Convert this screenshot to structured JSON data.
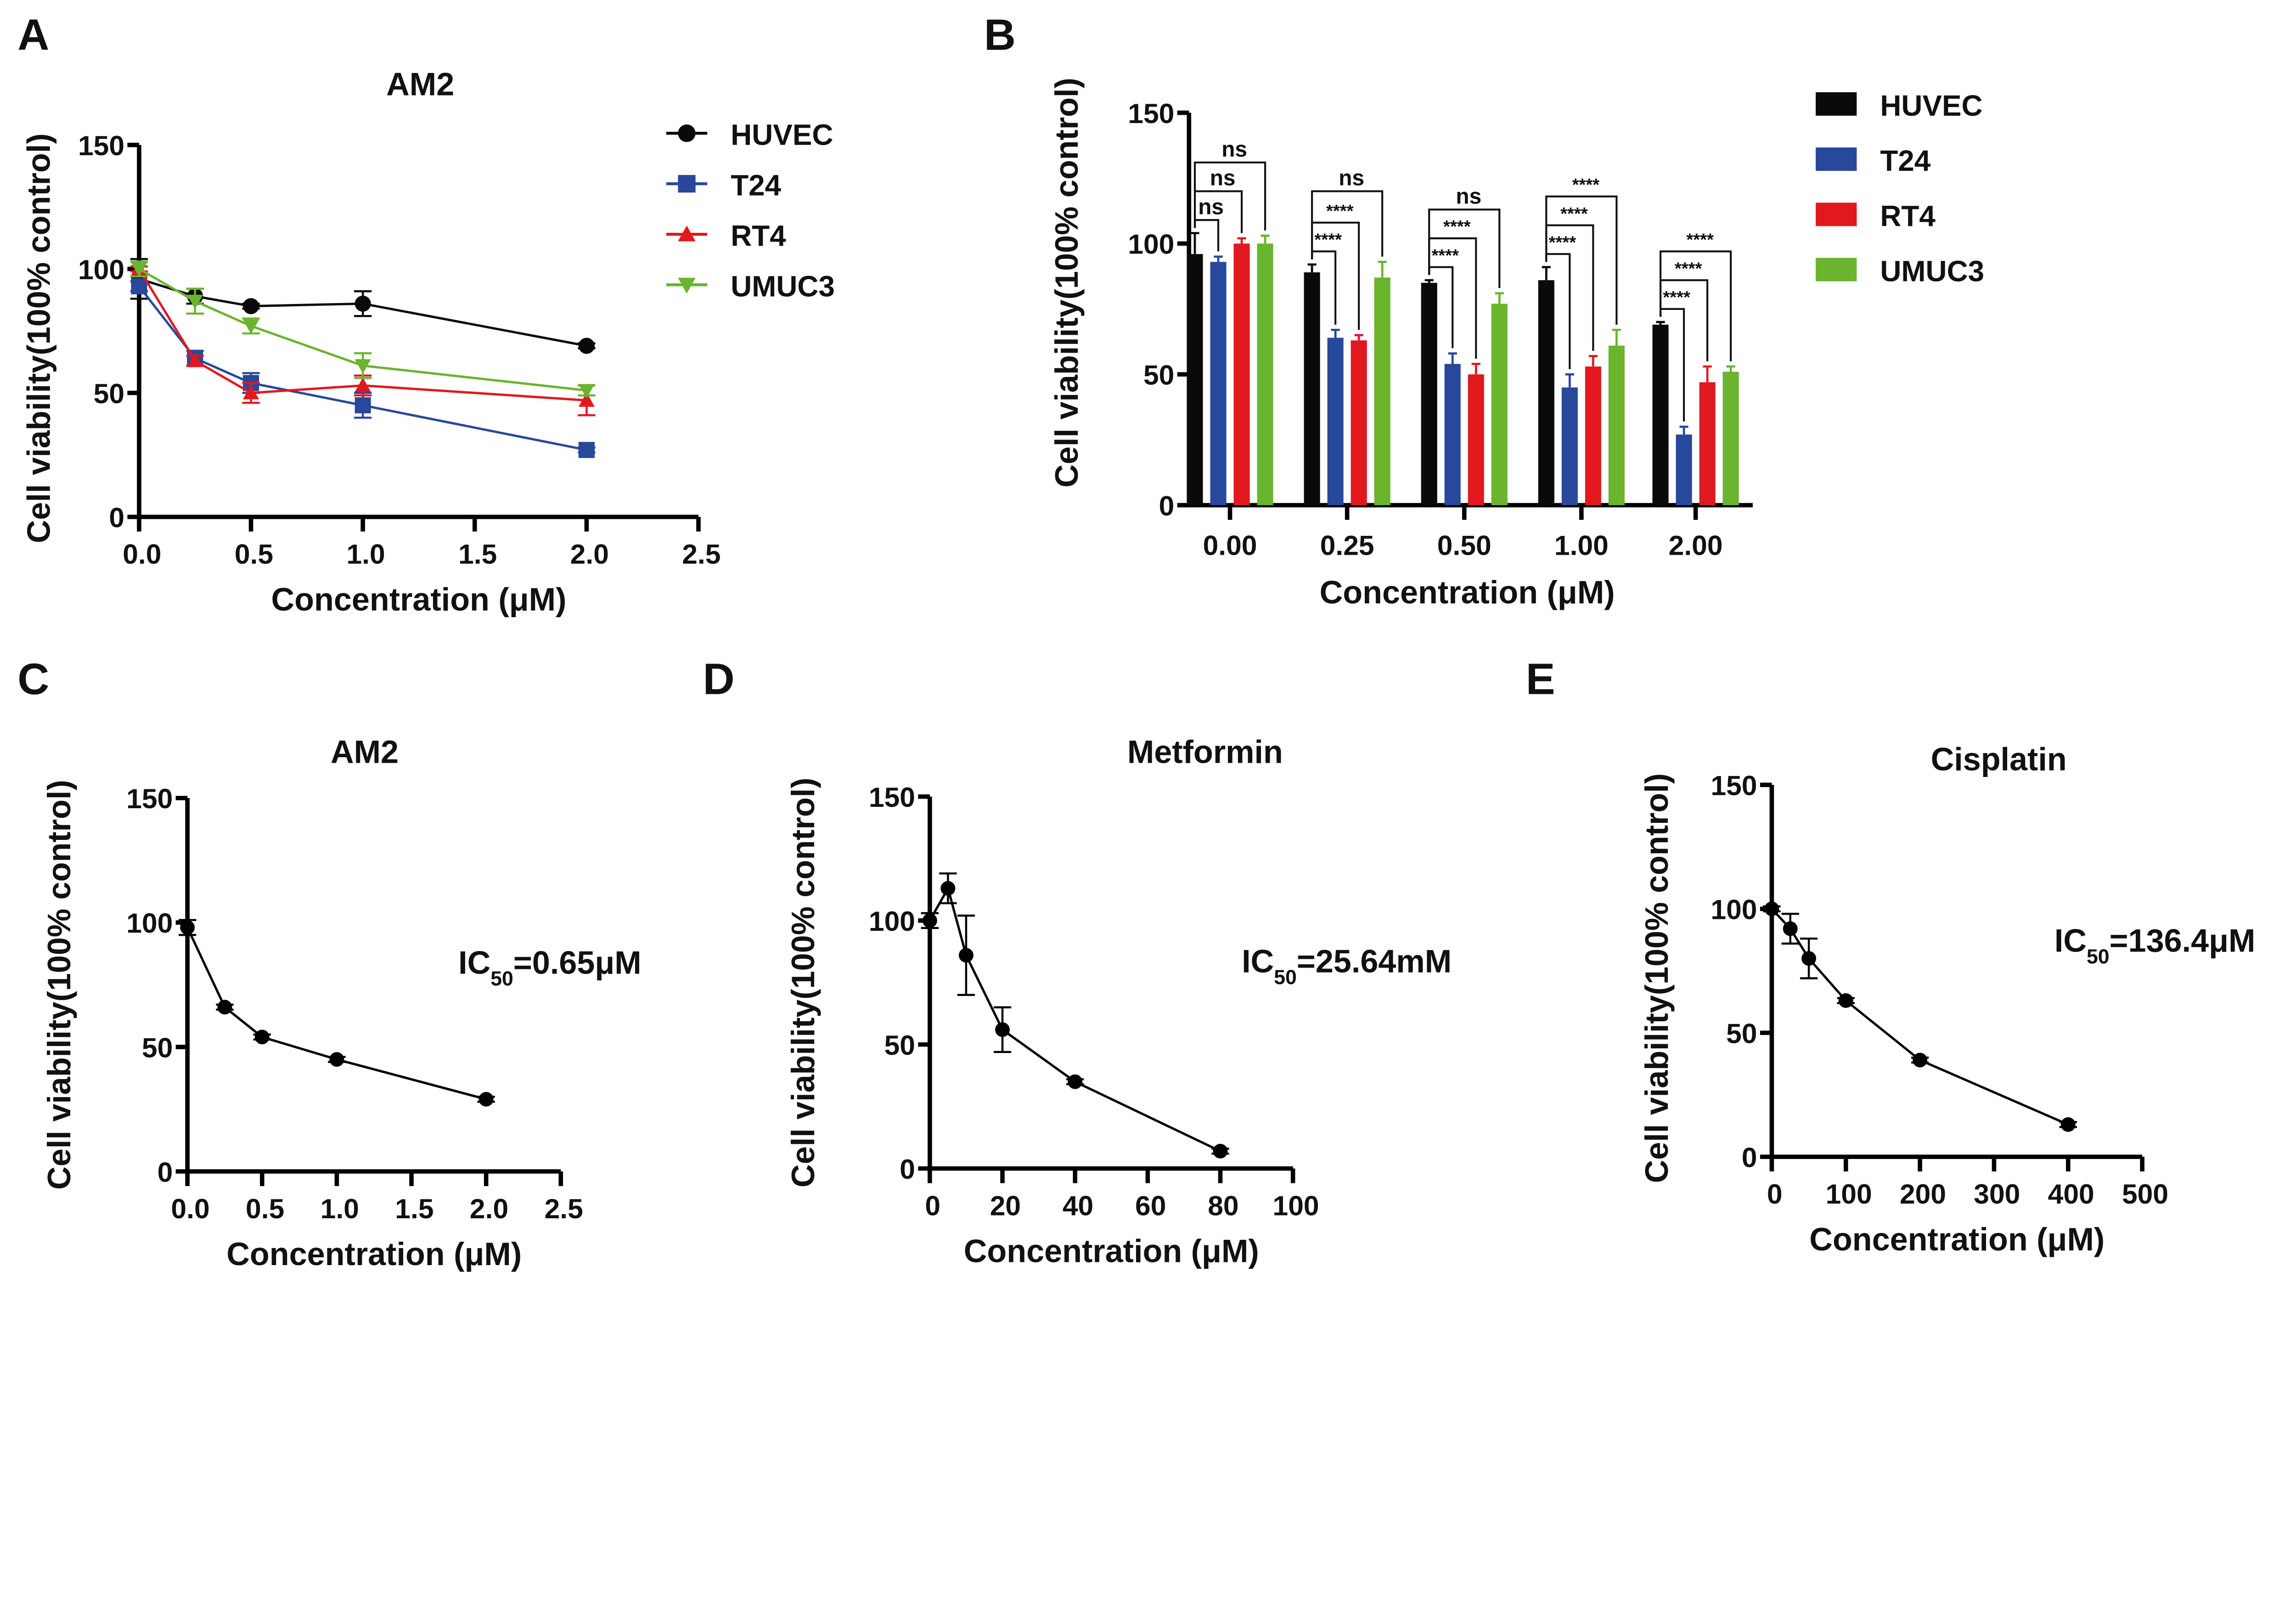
{
  "colors": {
    "HUVEC": "#0a0a0a",
    "T24": "#28489c",
    "RT4": "#e2181f",
    "UMUC3": "#6ab42e"
  },
  "chart_data": [
    {
      "panel": "A",
      "type": "line",
      "title": "AM2",
      "xlabel": "Concentration (μM)",
      "ylabel": "Cell viability(100% control)",
      "xlim": [
        0,
        2.5
      ],
      "ylim": [
        0,
        150
      ],
      "xticks": [
        "0.0",
        "0.5",
        "1.0",
        "1.5",
        "2.0",
        "2.5"
      ],
      "yticks": [
        "0",
        "50",
        "100",
        "150"
      ],
      "legend": "right",
      "x": [
        0,
        0.25,
        0.5,
        1,
        2
      ],
      "series": [
        {
          "name": "HUVEC",
          "marker": "circle",
          "values": [
            96,
            89,
            85,
            86,
            69
          ],
          "errors": [
            8,
            3,
            1,
            5,
            1
          ]
        },
        {
          "name": "T24",
          "marker": "square",
          "values": [
            93,
            64,
            54,
            45,
            27
          ],
          "errors": [
            2,
            3,
            4,
            5,
            1
          ]
        },
        {
          "name": "RT4",
          "marker": "triangle-up",
          "values": [
            100,
            63,
            50,
            53,
            47
          ],
          "errors": [
            1,
            2,
            4,
            4,
            6
          ]
        },
        {
          "name": "UMUC3",
          "marker": "triangle-down",
          "values": [
            100,
            87,
            77,
            61,
            51
          ],
          "errors": [
            3,
            5,
            3,
            5,
            2
          ]
        }
      ]
    },
    {
      "panel": "B",
      "type": "bar",
      "xlabel": "Concentration (μM)",
      "ylabel": "Cell viability(100% control)",
      "ylim": [
        0,
        150
      ],
      "yticks": [
        "0",
        "50",
        "100",
        "150"
      ],
      "categories": [
        "0.00",
        "0.25",
        "0.50",
        "1.00",
        "2.00"
      ],
      "legend": "right",
      "series": [
        {
          "name": "HUVEC",
          "values": [
            96,
            89,
            85,
            86,
            69
          ],
          "errors": [
            8,
            3,
            1,
            5,
            1
          ]
        },
        {
          "name": "T24",
          "values": [
            93,
            64,
            54,
            45,
            27
          ],
          "errors": [
            2,
            3,
            4,
            5,
            3
          ]
        },
        {
          "name": "RT4",
          "values": [
            100,
            63,
            50,
            53,
            47
          ],
          "errors": [
            2,
            2,
            4,
            4,
            6
          ]
        },
        {
          "name": "UMUC3",
          "values": [
            100,
            87,
            77,
            61,
            51
          ],
          "errors": [
            3,
            6,
            4,
            6,
            2
          ]
        }
      ],
      "significance": [
        [
          "ns",
          "ns",
          "ns"
        ],
        [
          "****",
          "****",
          "ns"
        ],
        [
          "****",
          "****",
          "ns"
        ],
        [
          "****",
          "****",
          "****"
        ],
        [
          "****",
          "****",
          "****"
        ]
      ]
    },
    {
      "panel": "C",
      "type": "line",
      "title": "AM2",
      "xlabel": "Concentration (μM)",
      "ylabel": "Cell viability(100% control)",
      "xlim": [
        0,
        2.5
      ],
      "ylim": [
        0,
        150
      ],
      "xticks": [
        "0.0",
        "0.5",
        "1.0",
        "1.5",
        "2.0",
        "2.5"
      ],
      "yticks": [
        "0",
        "50",
        "100",
        "150"
      ],
      "x": [
        0,
        0.25,
        0.5,
        1,
        2
      ],
      "series": [
        {
          "values": [
            98,
            66,
            54,
            45,
            29
          ],
          "errors": [
            3,
            1,
            1,
            1,
            1
          ]
        }
      ],
      "annotation": {
        "prefix": "IC",
        "sub": "50",
        "value": "=0.65μM"
      }
    },
    {
      "panel": "D",
      "type": "line",
      "title": "Metformin",
      "xlabel": "Concentration (μM)",
      "ylabel": "Cell viability(100% control)",
      "xlim": [
        0,
        100
      ],
      "ylim": [
        0,
        150
      ],
      "xticks": [
        "0",
        "20",
        "40",
        "60",
        "80",
        "100"
      ],
      "yticks": [
        "0",
        "50",
        "100",
        "150"
      ],
      "x": [
        0,
        5,
        10,
        20,
        40,
        80
      ],
      "series": [
        {
          "values": [
            100,
            113,
            86,
            56,
            35,
            7
          ],
          "errors": [
            3,
            6,
            16,
            9,
            1,
            1
          ]
        }
      ],
      "annotation": {
        "prefix": "IC",
        "sub": "50",
        "value": "=25.64mM"
      }
    },
    {
      "panel": "E",
      "type": "line",
      "title": "Cisplatin",
      "xlabel": "Concentration (μM)",
      "ylabel": "Cell viability(100% control)",
      "xlim": [
        0,
        500
      ],
      "ylim": [
        0,
        150
      ],
      "xticks": [
        "0",
        "100",
        "200",
        "300",
        "400",
        "500"
      ],
      "yticks": [
        "0",
        "50",
        "100",
        "150"
      ],
      "x": [
        0,
        25,
        50,
        100,
        200,
        400
      ],
      "series": [
        {
          "values": [
            100,
            92,
            80,
            63,
            39,
            13
          ],
          "errors": [
            1,
            6,
            8,
            1,
            1,
            1
          ]
        }
      ],
      "annotation": {
        "prefix": "IC",
        "sub": "50",
        "value": "=136.4μM"
      }
    }
  ]
}
